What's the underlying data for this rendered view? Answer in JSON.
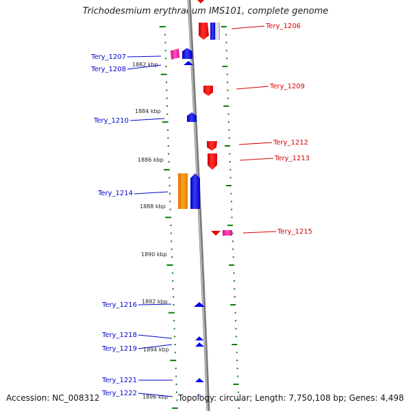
{
  "header": {
    "title": "Trichodesmium erythraeum IMS101, complete genome"
  },
  "footer": {
    "accession": "Accession: NC_008312",
    "topology": "Topology: circular; Length: 7,750,108 bp; Genes: 4,498"
  },
  "colors": {
    "forward_gene": "#ff0000",
    "reverse_gene": "#0000ff",
    "rna": "#ff00aa",
    "orange_gene": "#ff8c00",
    "tick": "#008000",
    "backbone": "#888888",
    "right_label": "#d40000",
    "left_label": "#0000cc"
  },
  "ruler": {
    "labels": [
      "1882 kbp",
      "1884 kbp",
      "1886 kbp",
      "1888 kbp",
      "1890 kbp",
      "1892 kbp",
      "1894 kbp",
      "1896 kbp"
    ]
  },
  "genes_left": [
    "Tery_1207",
    "Tery_1208",
    "Tery_1210",
    "Tery_1214",
    "Tery_1216",
    "Tery_1218",
    "Tery_1219",
    "Tery_1221",
    "Tery_1222"
  ],
  "genes_right": [
    "Tery_1206",
    "Tery_1209",
    "Tery_1212",
    "Tery_1213",
    "Tery_1215"
  ]
}
